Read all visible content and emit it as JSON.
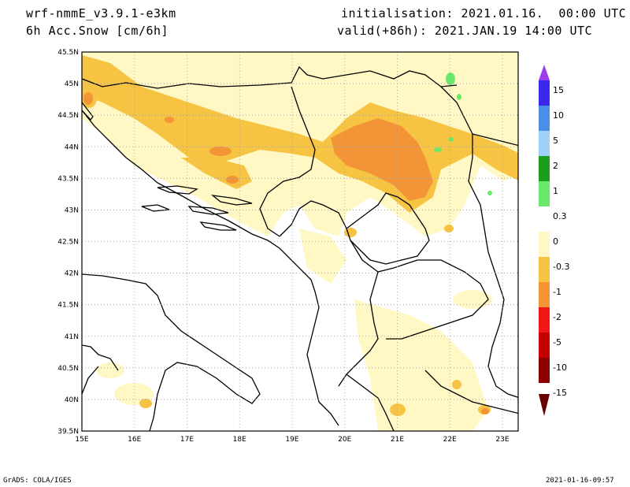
{
  "header": {
    "model": "wrf-nmmE_v3.9.1-e3km",
    "field": "6h Acc.Snow [cm/6h]",
    "init": "initialisation: 2021.01.16.  00:00 UTC",
    "valid": "valid(+86h): 2021.JAN.19 14:00 UTC"
  },
  "map": {
    "lat_labels": [
      "45.5N",
      "45N",
      "44.5N",
      "44N",
      "43.5N",
      "43N",
      "42.5N",
      "42N",
      "41.5N",
      "41N",
      "40.5N",
      "40N",
      "39.5N"
    ],
    "lon_labels": [
      "15E",
      "16E",
      "17E",
      "18E",
      "19E",
      "20E",
      "21E",
      "22E",
      "23E"
    ],
    "extent": {
      "lon": [
        15,
        23.3
      ],
      "lat": [
        39.5,
        45.5
      ]
    },
    "grid": "dotted"
  },
  "colorbar": {
    "labels": [
      "15",
      "10",
      "5",
      "2",
      "1",
      "0.3",
      "0",
      "-0.3",
      "-1",
      "-2",
      "-5",
      "-10",
      "-15"
    ],
    "colors": [
      "#3b28e8",
      "#4a8ee6",
      "#9fd0f7",
      "#1c9e1c",
      "#6ae86a",
      "#ffffff",
      "#ffffff",
      "#fff8c4",
      "#f6c442",
      "#f39436",
      "#f01616",
      "#c40000",
      "#8c0000"
    ],
    "top_arrow_color": "#9a3ef0",
    "bottom_arrow_color": "#6a0000"
  },
  "footer": {
    "left": "GrADS: COLA/IGES",
    "right": "2021-01-16-09:57"
  }
}
